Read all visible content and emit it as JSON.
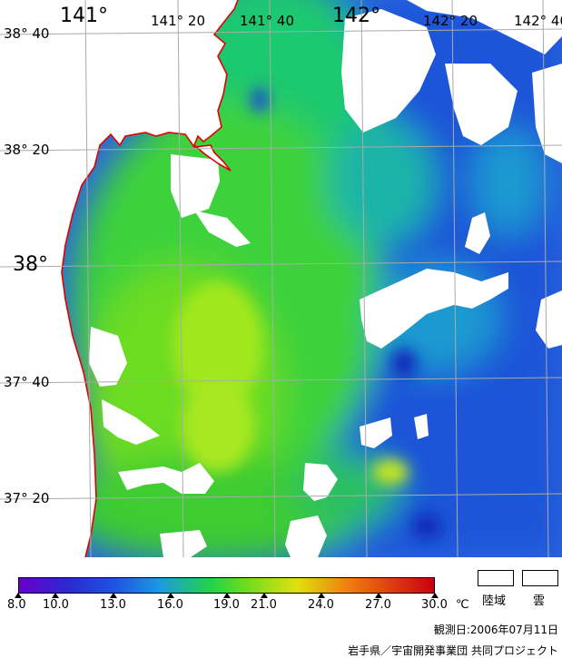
{
  "map": {
    "lon_labels": [
      "141°",
      "141° 20",
      "141° 40",
      "142°",
      "142° 20",
      "142° 40"
    ],
    "lat_labels": [
      "38° 40",
      "38° 20",
      "38°",
      "37° 40",
      "37° 20"
    ],
    "colors": {
      "land": "#ffffff",
      "coastline": "#e00000",
      "grid": "#aaaaaa"
    }
  },
  "colorbar": {
    "ticks": [
      "8.0",
      "10.0",
      "13.0",
      "16.0",
      "19.0",
      "21.0",
      "24.0",
      "27.0",
      "30.0"
    ],
    "unit": "℃",
    "min": 8.0,
    "max": 30.0
  },
  "legend": {
    "land_label": "陸域",
    "cloud_label": "雲"
  },
  "footer": {
    "observation_date": "観測日:2006年07月11日",
    "credit": "岩手県／宇宙開発事業団 共同プロジェクト"
  }
}
